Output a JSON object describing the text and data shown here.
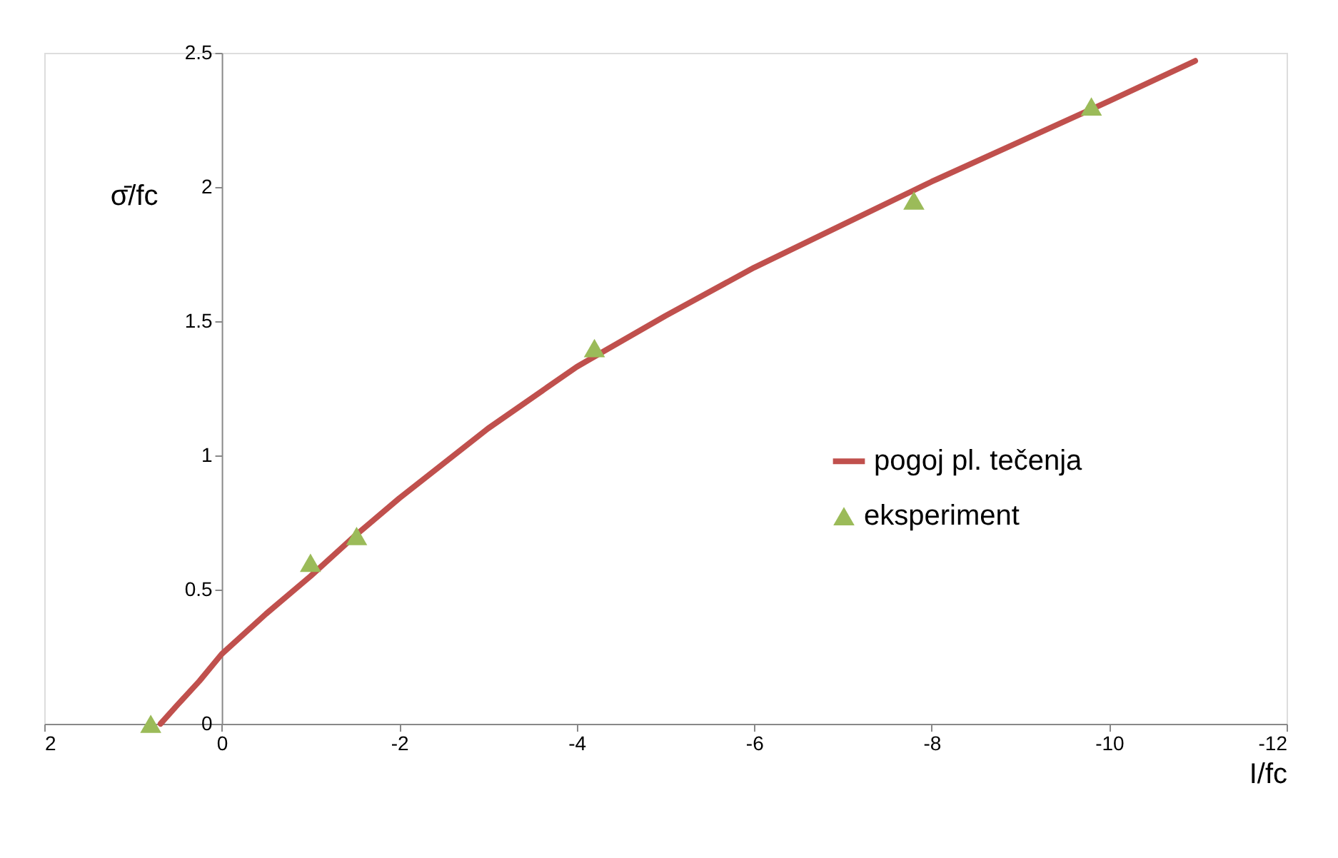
{
  "chart_data": {
    "type": "line",
    "xlabel": "I/fc",
    "ylabel": "σ̄/fc",
    "xlim": [
      2,
      -12
    ],
    "xticks": [
      2,
      0,
      -2,
      -4,
      -6,
      -8,
      -10,
      -12
    ],
    "ylim": [
      0,
      2.5
    ],
    "yticks": [
      0,
      0.5,
      1,
      1.5,
      2,
      2.5
    ],
    "grid": false,
    "legend": "right",
    "series": [
      {
        "name": "pogoj pl. tečenja",
        "color": "#c0504d",
        "marker": "none",
        "line_style": "solid",
        "x": [
          0.69,
          0.5,
          0.25,
          0,
          -0.5,
          -1,
          -1.5,
          -2,
          -3,
          -4,
          -5,
          -6,
          -7,
          -8,
          -9,
          -10,
          -10.97
        ],
        "values": [
          0,
          0.07,
          0.16,
          0.26,
          0.41,
          0.55,
          0.7,
          0.84,
          1.1,
          1.33,
          1.52,
          1.7,
          1.86,
          2.02,
          2.17,
          2.32,
          2.47
        ]
      },
      {
        "name": "eksperiment",
        "type": "scatter",
        "color": "#9bbb59",
        "marker": "triangle",
        "x": [
          0.8,
          -1,
          -1.52,
          -4.2,
          -7.8,
          -9.8
        ],
        "values": [
          0,
          0.6,
          0.7,
          1.4,
          1.95,
          2.3
        ]
      }
    ]
  }
}
